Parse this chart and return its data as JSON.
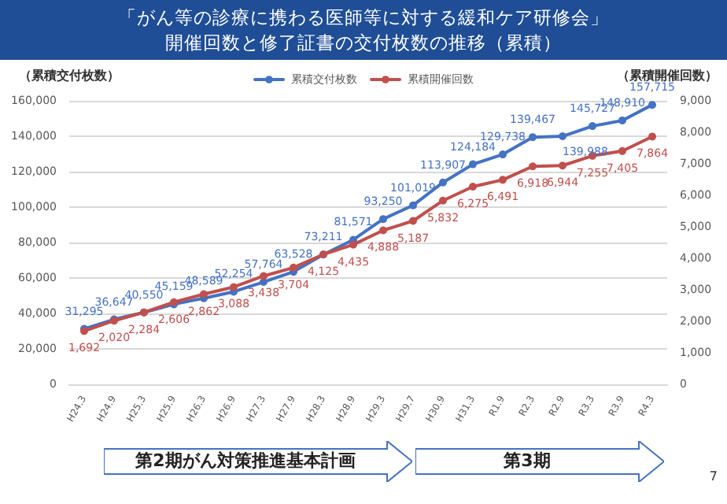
{
  "chart_data": {
    "type": "line",
    "title": "「がん等の診療に携わる医師等に対する緩和ケア研修会」",
    "subtitle": "開催回数と修了証書の交付枚数の推移（累積）",
    "ylabel": "（累積交付枚数）",
    "y2label": "（累積開催回数）",
    "categories": [
      "H24.3",
      "H24.9",
      "H25.3",
      "H25.9",
      "H26.3",
      "H26.9",
      "H27.3",
      "H27.9",
      "H28.3",
      "H28.9",
      "H29.3",
      "H29.7",
      "H30.9",
      "H31.3",
      "R1.9",
      "R2.3",
      "R2.9",
      "R3.3",
      "R3.9",
      "R4.3"
    ],
    "series": [
      {
        "name": "累積交付枚数",
        "color": "#4472c4",
        "values": [
          31295,
          36647,
          40550,
          45159,
          48589,
          52254,
          57764,
          63528,
          73211,
          81571,
          93250,
          101019,
          113907,
          124184,
          129738,
          139467,
          139988,
          145727,
          148910,
          157715
        ],
        "value_labels": [
          "31,295",
          "36,647",
          "40,550",
          "45,159",
          "48,589",
          "52,254",
          "57,764",
          "63,528",
          "73,211",
          "81,571",
          "93,250",
          "101,019",
          "113,907",
          "124,184",
          "129,738",
          "139,467",
          "139,988",
          "145,727",
          "148,910",
          "157,715"
        ]
      },
      {
        "name": "累積開催回数",
        "color": "#c0504d",
        "axis": "y2",
        "values": [
          1692,
          2020,
          2284,
          2606,
          2862,
          3088,
          3438,
          3704,
          4125,
          4435,
          4888,
          5187,
          5832,
          6275,
          6491,
          6918,
          6944,
          7255,
          7405,
          7864
        ],
        "value_labels": [
          "1,692",
          "2,020",
          "2,284",
          "2,606",
          "2,862",
          "3,088",
          "3,438",
          "3,704",
          "4,125",
          "4,435",
          "4,888",
          "5,187",
          "5,832",
          "6,275",
          "6,491",
          "6,918",
          "6,944",
          "7,255",
          "7,405",
          "7,864"
        ]
      }
    ],
    "ylim": [
      0,
      160000
    ],
    "yticks": [
      0,
      {
        "value": 20000,
        "label": "20,000"
      },
      {
        "value": 40000,
        "label": "40,000"
      },
      {
        "value": 60000,
        "label": "60,000"
      },
      {
        "value": 80000,
        "label": "80,000"
      },
      {
        "value": 100000,
        "label": "100,000"
      },
      {
        "value": 120000,
        "label": "120,000"
      },
      {
        "value": 140000,
        "label": "140,000"
      },
      {
        "value": 160000,
        "label": "160,000"
      }
    ],
    "y2lim": [
      0,
      9000
    ],
    "y2ticks": [
      0,
      {
        "value": 1000,
        "label": "1,000"
      },
      {
        "value": 2000,
        "label": "2,000"
      },
      {
        "value": 3000,
        "label": "3,000"
      },
      {
        "value": 4000,
        "label": "4,000"
      },
      {
        "value": 5000,
        "label": "5,000"
      },
      {
        "value": 6000,
        "label": "6,000"
      },
      {
        "value": 7000,
        "label": "7,000"
      },
      {
        "value": 8000,
        "label": "8,000"
      },
      {
        "value": 9000,
        "label": "9,000"
      }
    ],
    "grid": "y",
    "legend": "top",
    "marker": "circle",
    "line_style": "solid",
    "annotations": [
      "第2期がん対策推進基本計画",
      "第3期",
      "7"
    ]
  }
}
